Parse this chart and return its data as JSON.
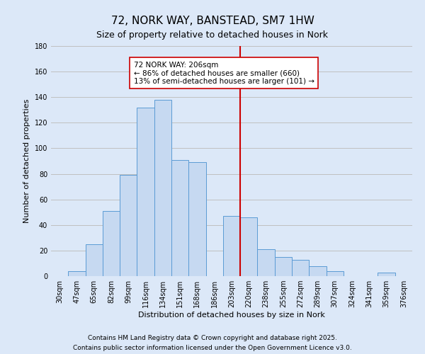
{
  "title": "72, NORK WAY, BANSTEAD, SM7 1HW",
  "subtitle": "Size of property relative to detached houses in Nork",
  "xlabel": "Distribution of detached houses by size in Nork",
  "ylabel": "Number of detached properties",
  "bar_labels": [
    "30sqm",
    "47sqm",
    "65sqm",
    "82sqm",
    "99sqm",
    "116sqm",
    "134sqm",
    "151sqm",
    "168sqm",
    "186sqm",
    "203sqm",
    "220sqm",
    "238sqm",
    "255sqm",
    "272sqm",
    "289sqm",
    "307sqm",
    "324sqm",
    "341sqm",
    "359sqm",
    "376sqm"
  ],
  "bar_values": [
    0,
    4,
    25,
    51,
    79,
    132,
    138,
    91,
    89,
    0,
    47,
    46,
    21,
    15,
    13,
    8,
    4,
    0,
    0,
    3,
    0
  ],
  "bar_color": "#c6d9f1",
  "bar_edge_color": "#5b9bd5",
  "vline_x": 10.5,
  "vline_color": "#cc0000",
  "annotation_text": "72 NORK WAY: 206sqm\n← 86% of detached houses are smaller (660)\n13% of semi-detached houses are larger (101) →",
  "annotation_box_color": "#ffffff",
  "annotation_box_edge_color": "#cc0000",
  "ylim": [
    0,
    180
  ],
  "yticks": [
    0,
    20,
    40,
    60,
    80,
    100,
    120,
    140,
    160,
    180
  ],
  "grid_color": "#c0c0c0",
  "bg_color": "#dce8f8",
  "footnote1": "Contains HM Land Registry data © Crown copyright and database right 2025.",
  "footnote2": "Contains public sector information licensed under the Open Government Licence v3.0.",
  "title_fontsize": 11,
  "subtitle_fontsize": 9,
  "axis_label_fontsize": 8,
  "tick_fontsize": 7,
  "annotation_fontsize": 7.5,
  "footnote_fontsize": 6.5
}
